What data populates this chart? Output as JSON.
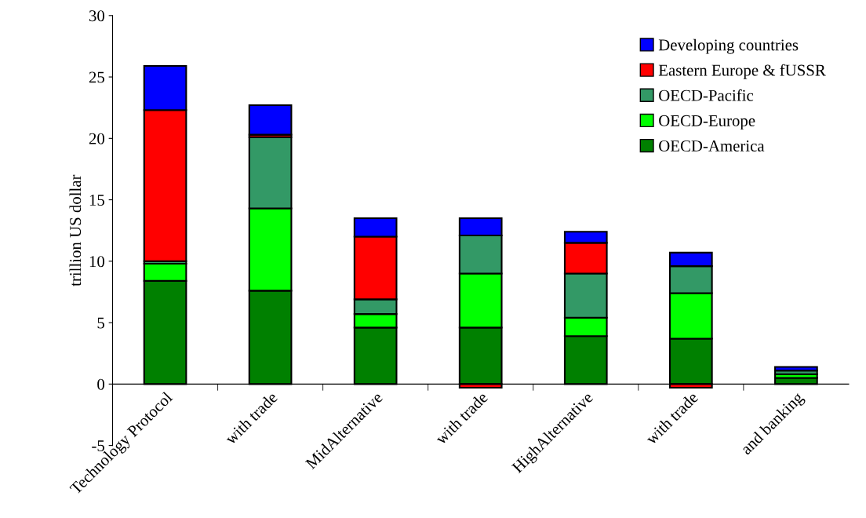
{
  "chart_data": {
    "type": "bar",
    "stacked": true,
    "ylabel": "trillion US dollar",
    "categories": [
      "Technology Protocol",
      "with trade",
      "MidAlternative",
      "with trade",
      "HighAlternative",
      "with trade",
      "and banking"
    ],
    "series": [
      {
        "name": "OECD-America",
        "color": "#008000",
        "values": [
          8.4,
          7.6,
          4.6,
          4.6,
          3.9,
          3.7,
          0.5
        ]
      },
      {
        "name": "OECD-Europe",
        "color": "#00ff00",
        "values": [
          1.4,
          6.7,
          1.1,
          4.4,
          1.5,
          3.7,
          0.3
        ]
      },
      {
        "name": "OECD-Pacific",
        "color": "#339966",
        "values": [
          0.2,
          5.8,
          1.2,
          3.1,
          3.6,
          2.2,
          0.3
        ]
      },
      {
        "name": "Eastern Europe & fUSSR",
        "color": "#ff0000",
        "values": [
          12.3,
          0.2,
          5.1,
          -0.3,
          2.5,
          -0.3,
          null
        ]
      },
      {
        "name": "Developing countries",
        "color": "#0000ff",
        "values": [
          3.6,
          2.4,
          1.5,
          1.4,
          0.9,
          1.1,
          0.3
        ]
      }
    ],
    "ylim": [
      -5,
      30
    ],
    "yticks": [
      -5,
      0,
      5,
      10,
      15,
      20,
      25,
      30
    ],
    "legend": "top right"
  }
}
